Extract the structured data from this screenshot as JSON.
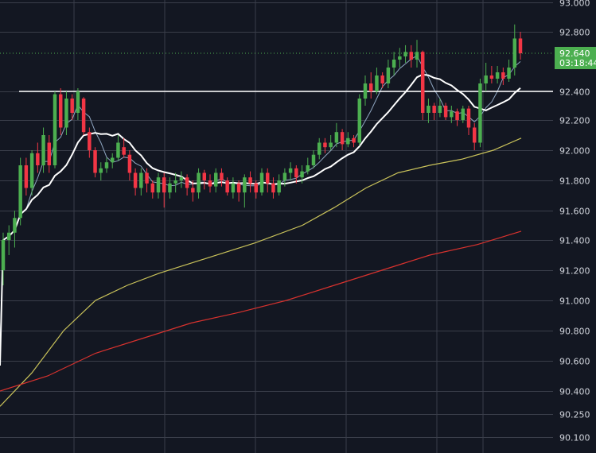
{
  "colors": {
    "background": "#131722",
    "grid": "#3a3e4a",
    "axis_text": "#d1d4dc",
    "up": "#4caf50",
    "down": "#f23645",
    "ma_fast": "#8fa6c1",
    "ma_slow": "#ffffff",
    "ma_mid": "#c9c25a",
    "ma_long": "#d8322e",
    "hline": "#ffffff",
    "price_tag": "#4caf50"
  },
  "chart_data": {
    "type": "candlestick",
    "y_ticks": [
      {
        "value": 93.0,
        "label": "93.000"
      },
      {
        "value": 92.8,
        "label": "92.800"
      },
      {
        "value": 92.4,
        "label": "92.400"
      },
      {
        "value": 92.2,
        "label": "92.200"
      },
      {
        "value": 92.0,
        "label": "92.000"
      },
      {
        "value": 91.8,
        "label": "91.800"
      },
      {
        "value": 91.6,
        "label": "91.600"
      },
      {
        "value": 91.4,
        "label": "91.400"
      },
      {
        "value": 91.2,
        "label": "91.200"
      },
      {
        "value": 91.0,
        "label": "91.000"
      },
      {
        "value": 90.8,
        "label": "90.800"
      },
      {
        "value": 90.6,
        "label": "90.600"
      },
      {
        "value": 90.4,
        "label": "90.400"
      },
      {
        "value": 90.25,
        "label": "90.250"
      },
      {
        "value": 90.1,
        "label": "90.100"
      }
    ],
    "horizontal_line": 92.4,
    "last_price": {
      "label": "92.640",
      "countdown": "03:18:44"
    },
    "grid": true,
    "candles": [
      [
        91.2,
        91.4,
        91.45,
        91.1
      ],
      [
        91.4,
        91.45,
        91.5,
        91.3
      ],
      [
        91.45,
        91.55,
        91.6,
        91.35
      ],
      [
        91.55,
        91.9,
        91.95,
        91.5
      ],
      [
        91.9,
        91.75,
        91.95,
        91.7
      ],
      [
        91.75,
        91.98,
        92.0,
        91.7
      ],
      [
        91.98,
        91.9,
        92.05,
        91.85
      ],
      [
        91.9,
        92.1,
        92.15,
        91.85
      ],
      [
        92.05,
        91.9,
        92.1,
        91.85
      ],
      [
        91.9,
        92.38,
        92.4,
        91.88
      ],
      [
        92.38,
        92.15,
        92.42,
        92.1
      ],
      [
        92.15,
        92.35,
        92.4,
        92.1
      ],
      [
        92.35,
        92.25,
        92.38,
        92.2
      ],
      [
        92.25,
        92.4,
        92.42,
        92.2
      ],
      [
        92.35,
        92.12,
        92.36,
        92.1
      ],
      [
        92.12,
        92.0,
        92.15,
        91.95
      ],
      [
        92.0,
        91.85,
        92.02,
        91.82
      ],
      [
        91.85,
        91.88,
        91.92,
        91.8
      ],
      [
        91.88,
        91.92,
        91.95,
        91.85
      ],
      [
        91.92,
        91.95,
        91.98,
        91.88
      ],
      [
        91.95,
        92.05,
        92.1,
        91.93
      ],
      [
        92.02,
        91.97,
        92.08,
        91.95
      ],
      [
        91.97,
        91.85,
        92.0,
        91.8
      ],
      [
        91.85,
        91.75,
        91.88,
        91.7
      ],
      [
        91.75,
        91.85,
        91.88,
        91.7
      ],
      [
        91.85,
        91.78,
        91.88,
        91.72
      ],
      [
        91.78,
        91.72,
        91.8,
        91.68
      ],
      [
        91.72,
        91.82,
        91.85,
        91.68
      ],
      [
        91.82,
        91.72,
        91.85,
        91.62
      ],
      [
        91.72,
        91.78,
        91.82,
        91.68
      ],
      [
        91.78,
        91.8,
        91.85,
        91.72
      ],
      [
        91.8,
        91.82,
        91.86,
        91.75
      ],
      [
        91.82,
        91.75,
        91.84,
        91.7
      ],
      [
        91.75,
        91.72,
        91.8,
        91.66
      ],
      [
        91.72,
        91.85,
        91.88,
        91.68
      ],
      [
        91.85,
        91.8,
        91.87,
        91.74
      ],
      [
        91.8,
        91.76,
        91.84,
        91.72
      ],
      [
        91.76,
        91.85,
        91.88,
        91.72
      ],
      [
        91.85,
        91.8,
        91.88,
        91.76
      ],
      [
        91.8,
        91.72,
        91.82,
        91.7
      ],
      [
        91.72,
        91.78,
        91.82,
        91.68
      ],
      [
        91.78,
        91.72,
        91.8,
        91.66
      ],
      [
        91.72,
        91.82,
        91.84,
        91.62
      ],
      [
        91.82,
        91.78,
        91.86,
        91.72
      ],
      [
        91.78,
        91.72,
        91.8,
        91.68
      ],
      [
        91.72,
        91.85,
        91.88,
        91.7
      ],
      [
        91.85,
        91.78,
        91.88,
        91.72
      ],
      [
        91.78,
        91.72,
        91.82,
        91.68
      ],
      [
        91.72,
        91.8,
        91.84,
        91.7
      ],
      [
        91.8,
        91.85,
        91.88,
        91.76
      ],
      [
        91.85,
        91.88,
        91.92,
        91.8
      ],
      [
        91.88,
        91.82,
        91.9,
        91.78
      ],
      [
        91.82,
        91.86,
        91.9,
        91.78
      ],
      [
        91.86,
        91.9,
        91.95,
        91.84
      ],
      [
        91.9,
        91.97,
        92.0,
        91.88
      ],
      [
        91.97,
        92.05,
        92.08,
        91.94
      ],
      [
        92.05,
        92.02,
        92.08,
        91.98
      ],
      [
        92.02,
        92.05,
        92.1,
        92.0
      ],
      [
        92.05,
        92.12,
        92.18,
        92.02
      ],
      [
        92.12,
        92.04,
        92.14,
        92.0
      ],
      [
        92.04,
        92.08,
        92.12,
        92.02
      ],
      [
        92.08,
        92.05,
        92.1,
        92.02
      ],
      [
        92.05,
        92.35,
        92.38,
        92.03
      ],
      [
        92.35,
        92.45,
        92.5,
        92.3
      ],
      [
        92.45,
        92.4,
        92.52,
        92.35
      ],
      [
        92.4,
        92.5,
        92.55,
        92.38
      ],
      [
        92.5,
        92.45,
        92.52,
        92.42
      ],
      [
        92.45,
        92.55,
        92.6,
        92.42
      ],
      [
        92.55,
        92.6,
        92.65,
        92.5
      ],
      [
        92.6,
        92.62,
        92.68,
        92.55
      ],
      [
        92.62,
        92.65,
        92.7,
        92.58
      ],
      [
        92.65,
        92.6,
        92.7,
        92.55
      ],
      [
        92.6,
        92.65,
        92.74,
        92.55
      ],
      [
        92.65,
        92.25,
        92.66,
        92.2
      ],
      [
        92.25,
        92.3,
        92.35,
        92.18
      ],
      [
        92.3,
        92.25,
        92.32,
        92.2
      ],
      [
        92.25,
        92.3,
        92.35,
        92.22
      ],
      [
        92.3,
        92.22,
        92.32,
        92.2
      ],
      [
        92.22,
        92.26,
        92.3,
        92.18
      ],
      [
        92.26,
        92.2,
        92.28,
        92.16
      ],
      [
        92.2,
        92.28,
        92.3,
        92.18
      ],
      [
        92.28,
        92.15,
        92.3,
        92.1
      ],
      [
        92.15,
        92.05,
        92.18,
        92.0
      ],
      [
        92.05,
        92.45,
        92.48,
        92.02
      ],
      [
        92.45,
        92.5,
        92.58,
        92.4
      ],
      [
        92.5,
        92.48,
        92.56,
        92.45
      ],
      [
        92.48,
        92.52,
        92.56,
        92.45
      ],
      [
        92.52,
        92.48,
        92.55,
        92.44
      ],
      [
        92.48,
        92.55,
        92.6,
        92.46
      ],
      [
        92.55,
        92.75,
        92.85,
        92.5
      ],
      [
        92.75,
        92.64,
        92.8,
        92.6
      ]
    ]
  }
}
